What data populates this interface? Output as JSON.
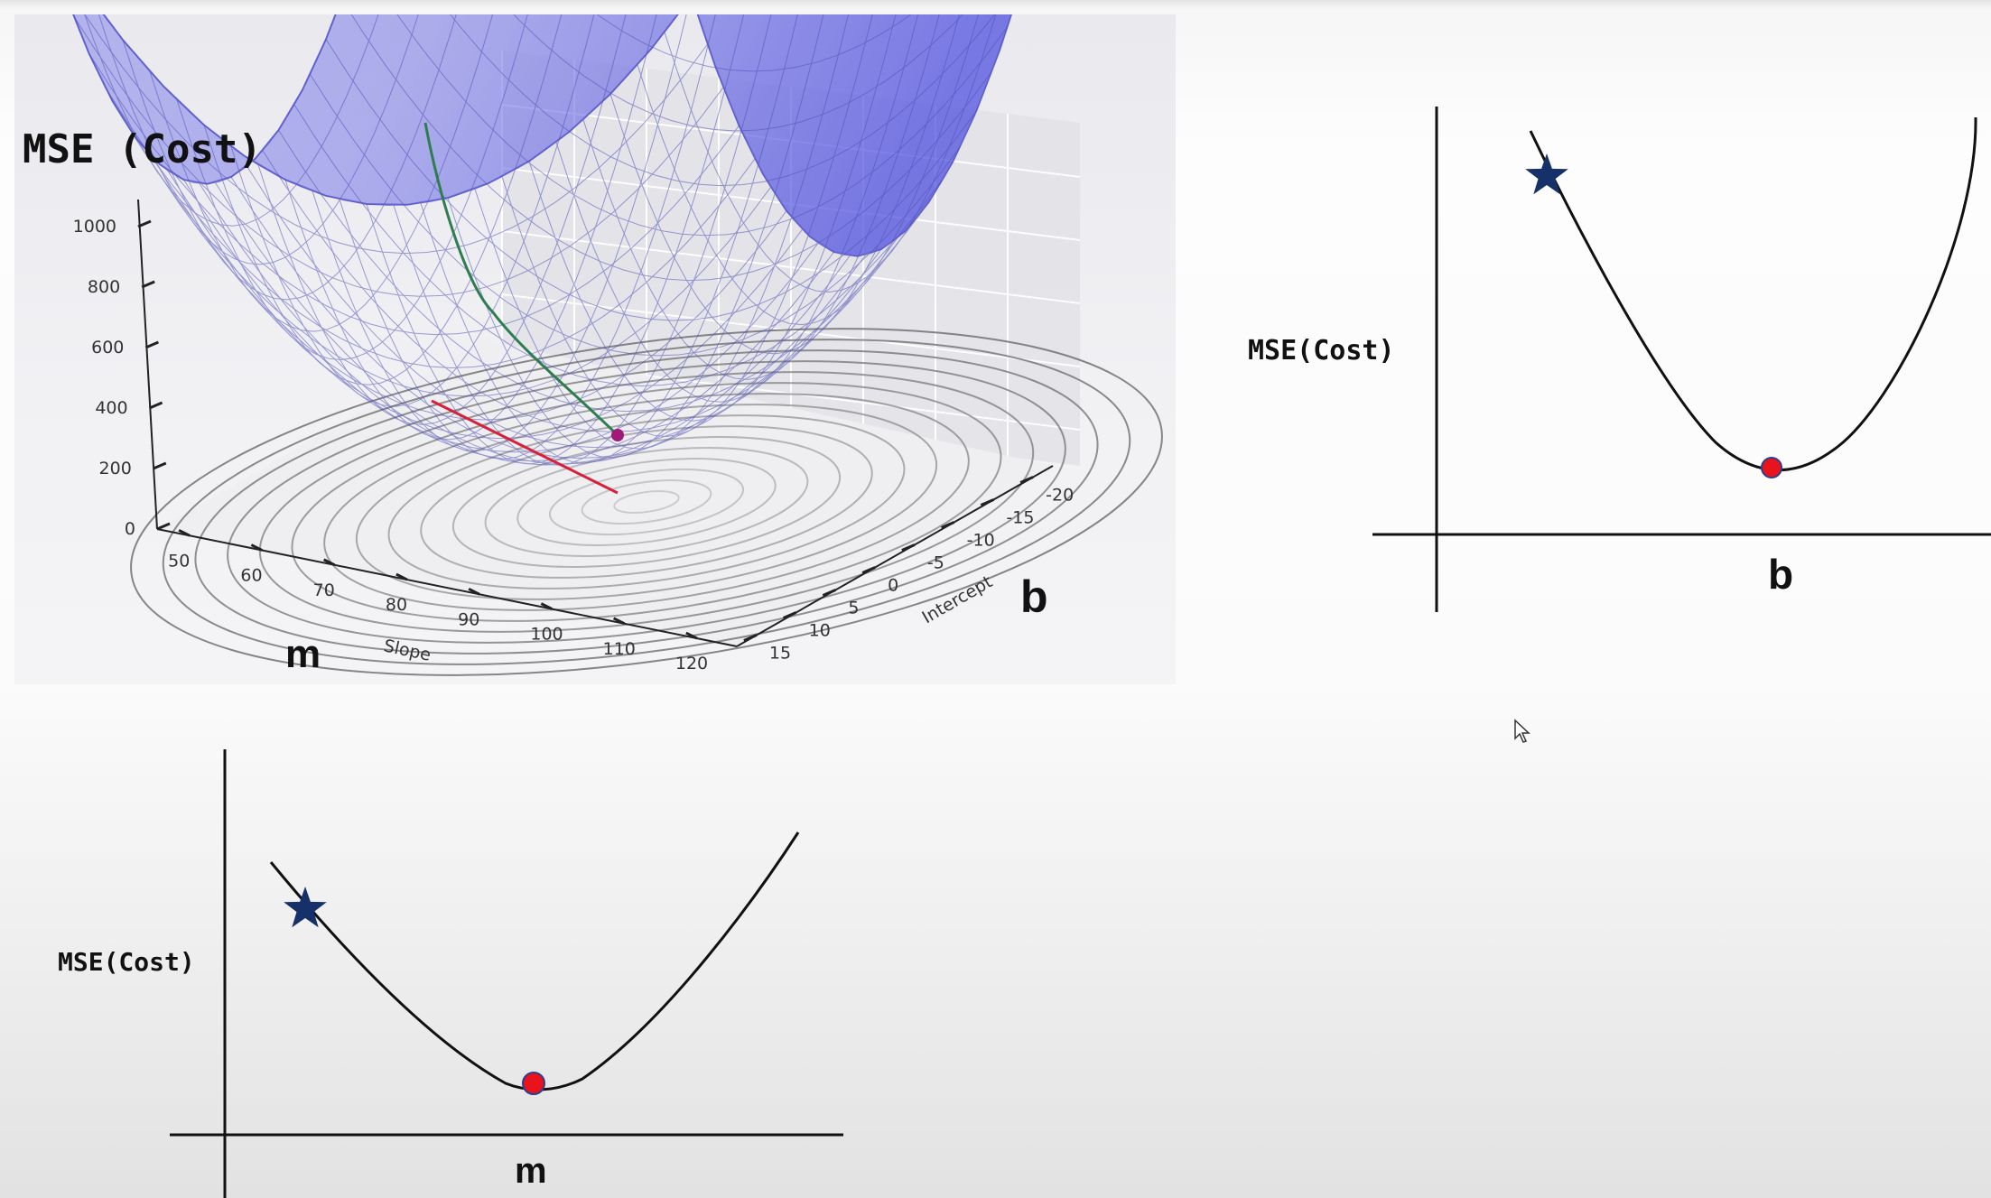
{
  "colors": {
    "surface": "#5b5be6",
    "surface_grid": "#4a4ac0",
    "path_green": "#2e7d4f",
    "path_red": "#d8203a",
    "marker_magenta": "#a0197a",
    "dot_red": "#e8131b",
    "star_navy": "#16306a",
    "axis": "#111111"
  },
  "chart_data": [
    {
      "type": "surface3d",
      "title": "MSE (Cost)",
      "xlabel": "Slope",
      "ylabel": "Intercept",
      "x_symbol": "m",
      "y_symbol": "b",
      "z_ticks": [
        "0",
        "200",
        "400",
        "600",
        "800",
        "1000"
      ],
      "x_ticks": [
        "50",
        "60",
        "70",
        "80",
        "90",
        "100",
        "110",
        "120"
      ],
      "y_ticks": [
        "-20",
        "-15",
        "-10",
        "-5",
        "0",
        "5",
        "10",
        "15"
      ],
      "zlim": [
        0,
        1000
      ],
      "grid": true,
      "contours_on_floor": true,
      "series": [
        {
          "name": "",
          "style": "gradient-descent-path",
          "color": "green"
        },
        {
          "name": "",
          "style": "projection-line",
          "color": "red"
        }
      ]
    },
    {
      "type": "line",
      "curve": "parabola",
      "ylabel": "MSE(Cost)",
      "xlabel": "b",
      "markers": [
        {
          "shape": "star",
          "position": "start"
        },
        {
          "shape": "dot",
          "position": "minimum"
        }
      ]
    },
    {
      "type": "line",
      "curve": "parabola",
      "ylabel": "MSE(Cost)",
      "xlabel": "m",
      "markers": [
        {
          "shape": "star",
          "position": "start"
        },
        {
          "shape": "dot",
          "position": "minimum"
        }
      ]
    }
  ]
}
